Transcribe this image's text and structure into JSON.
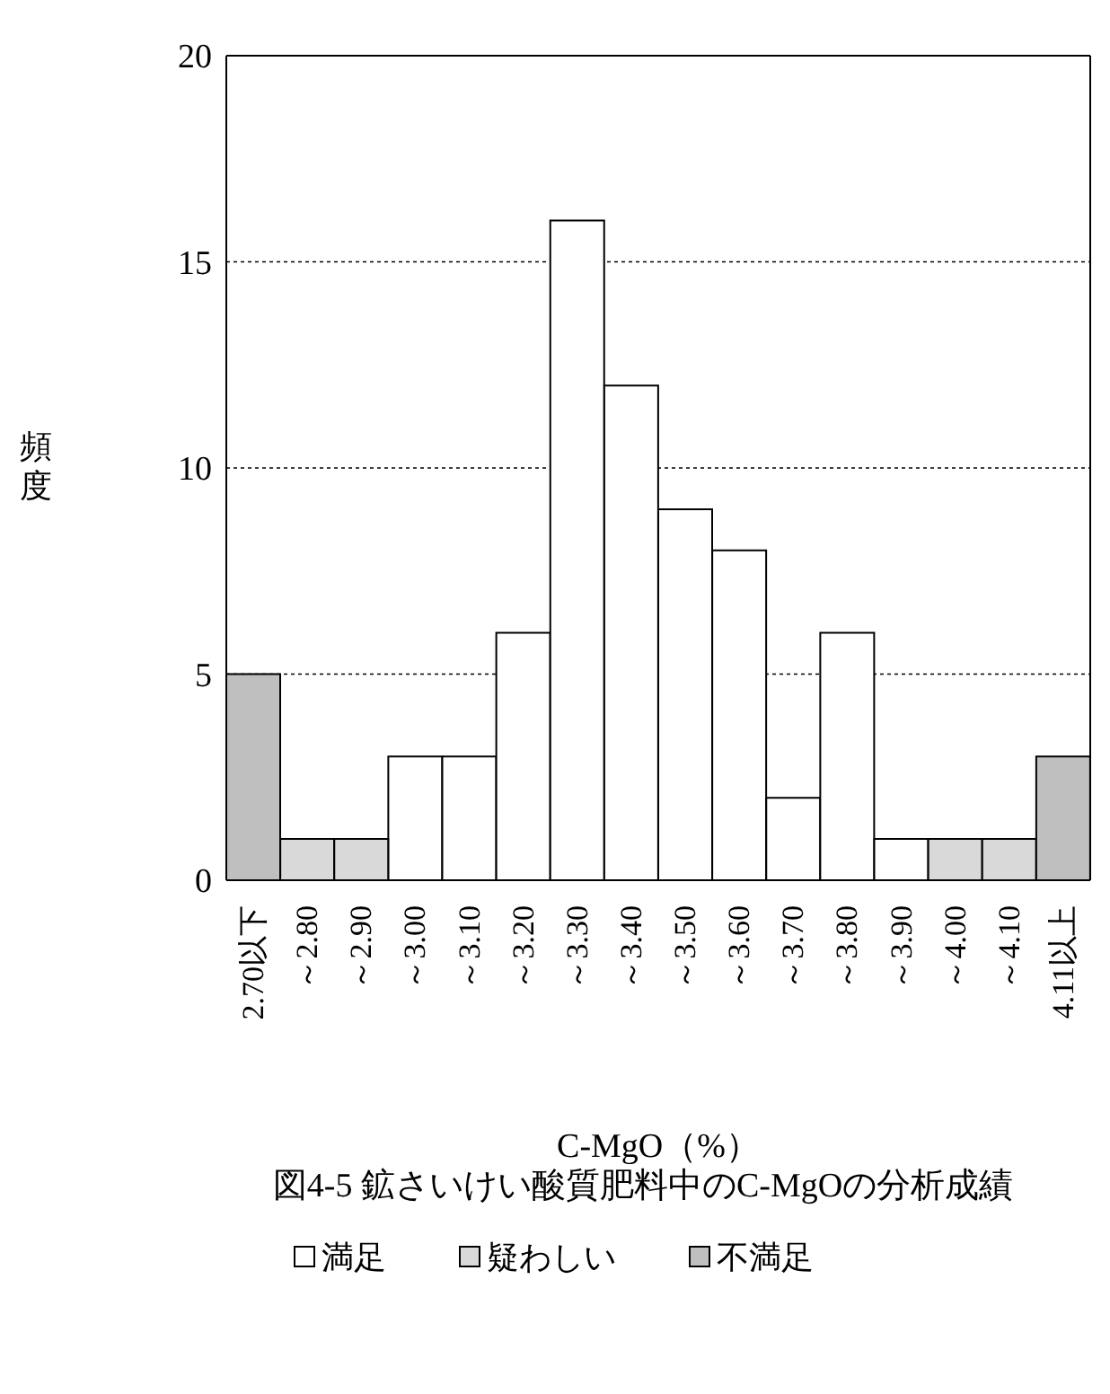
{
  "chart_data": {
    "type": "bar",
    "title": "図4-5 鉱さいけい酸質肥料中のC-MgOの分析成績",
    "xlabel": "C-MgO（%）",
    "ylabel": "頻度",
    "categories": [
      "2.70以下",
      "～2.80",
      "～2.90",
      "～3.00",
      "～3.10",
      "～3.20",
      "～3.30",
      "～3.40",
      "～3.50",
      "～3.60",
      "～3.70",
      "～3.80",
      "～3.90",
      "～4.00",
      "～4.10",
      "4.11以上"
    ],
    "series": [
      {
        "name": "満足",
        "color": "#ffffff",
        "values": [
          null,
          null,
          null,
          3,
          3,
          6,
          16,
          12,
          9,
          8,
          2,
          6,
          1,
          null,
          null,
          null
        ]
      },
      {
        "name": "疑わしい",
        "color": "#d9d9d9",
        "values": [
          null,
          1,
          1,
          null,
          null,
          null,
          null,
          null,
          null,
          null,
          null,
          null,
          null,
          1,
          1,
          null
        ]
      },
      {
        "name": "不満足",
        "color": "#bfbfbf",
        "values": [
          5,
          null,
          null,
          null,
          null,
          null,
          null,
          null,
          null,
          null,
          null,
          null,
          null,
          null,
          null,
          3
        ]
      }
    ],
    "ylim": [
      0,
      20
    ],
    "yticks": [
      0,
      5,
      10,
      15,
      20
    ],
    "grid": "y",
    "legend": "bottom"
  }
}
